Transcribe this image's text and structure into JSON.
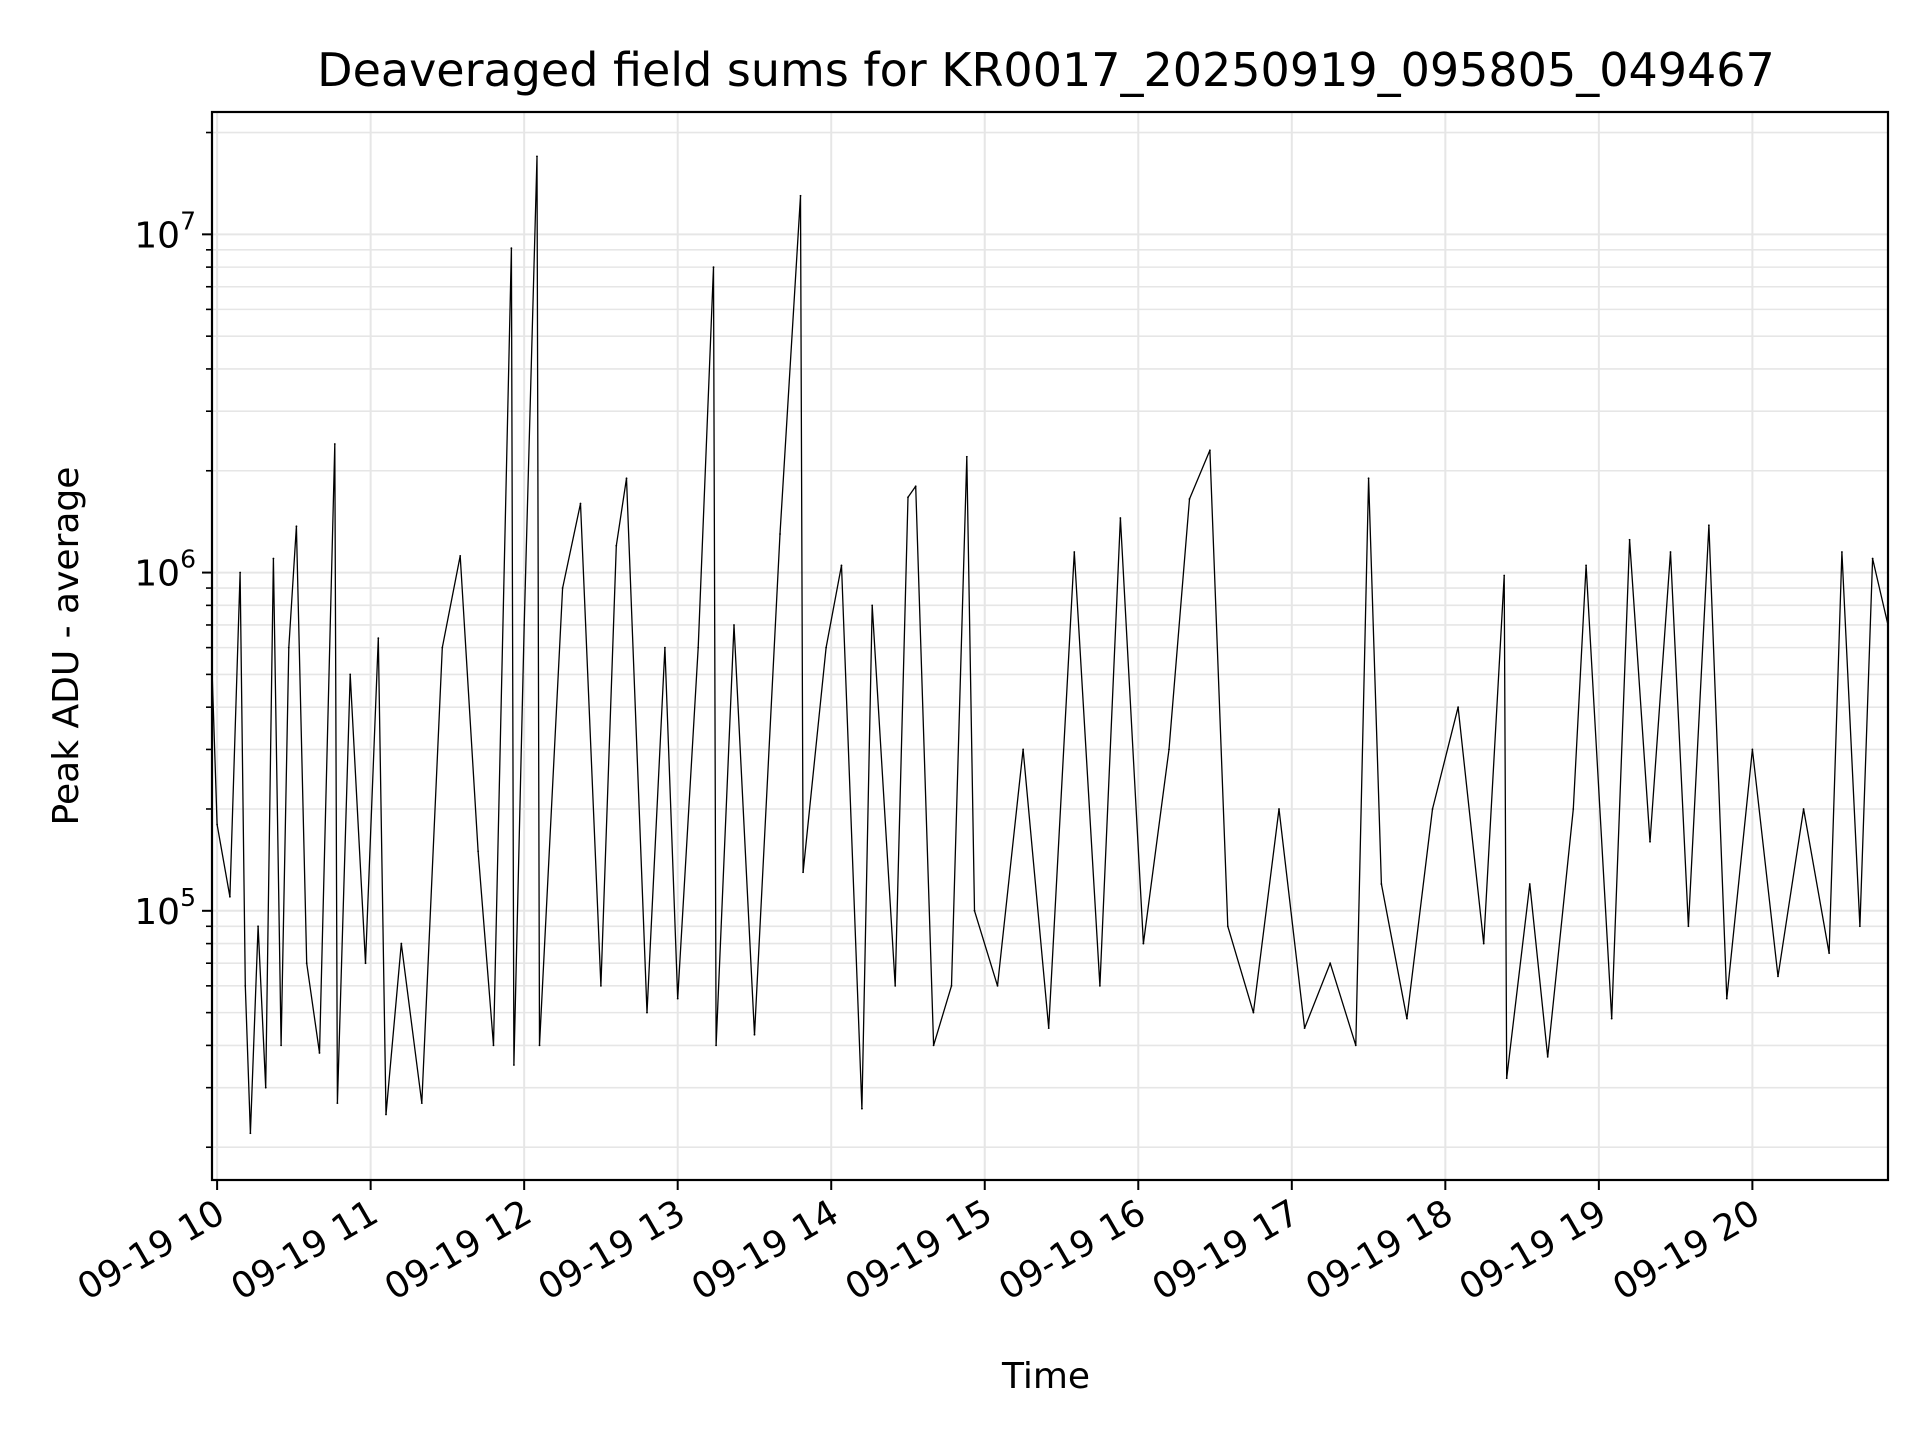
{
  "chart_data": {
    "type": "line",
    "title": "Deaveraged field sums for KR0017_20250919_095805_049467",
    "xlabel": "Time",
    "ylabel": "Peak ADU - average",
    "yscale": "log",
    "grid": true,
    "x_range": [
      "2025-09-19 09:58",
      "2025-09-19 20:53"
    ],
    "ylim": [
      16000,
      23000000
    ],
    "x_ticks": [
      {
        "label": "09-19 10",
        "t": "2025-09-19 10:00"
      },
      {
        "label": "09-19 11",
        "t": "2025-09-19 11:00"
      },
      {
        "label": "09-19 12",
        "t": "2025-09-19 12:00"
      },
      {
        "label": "09-19 13",
        "t": "2025-09-19 13:00"
      },
      {
        "label": "09-19 14",
        "t": "2025-09-19 14:00"
      },
      {
        "label": "09-19 15",
        "t": "2025-09-19 15:00"
      },
      {
        "label": "09-19 16",
        "t": "2025-09-19 16:00"
      },
      {
        "label": "09-19 17",
        "t": "2025-09-19 17:00"
      },
      {
        "label": "09-19 18",
        "t": "2025-09-19 18:00"
      },
      {
        "label": "09-19 19",
        "t": "2025-09-19 19:00"
      },
      {
        "label": "09-19 20",
        "t": "2025-09-19 20:00"
      }
    ],
    "y_ticks": [
      {
        "value": 100000,
        "label": "10",
        "exp": "5"
      },
      {
        "value": 1000000,
        "label": "10",
        "exp": "6"
      },
      {
        "value": 10000000,
        "label": "10",
        "exp": "7"
      }
    ],
    "series": [
      {
        "color": "#000000",
        "points": [
          [
            "2025-09-19 09:58",
            520000
          ],
          [
            "2025-09-19 10:00",
            180000
          ],
          [
            "2025-09-19 10:05",
            110000
          ],
          [
            "2025-09-19 10:09",
            1000000
          ],
          [
            "2025-09-19 10:11",
            60000
          ],
          [
            "2025-09-19 10:13",
            22000
          ],
          [
            "2025-09-19 10:16",
            90000
          ],
          [
            "2025-09-19 10:19",
            30000
          ],
          [
            "2025-09-19 10:22",
            1100000
          ],
          [
            "2025-09-19 10:25",
            40000
          ],
          [
            "2025-09-19 10:28",
            600000
          ],
          [
            "2025-09-19 10:31",
            1370000
          ],
          [
            "2025-09-19 10:35",
            70000
          ],
          [
            "2025-09-19 10:40",
            38000
          ],
          [
            "2025-09-19 10:46",
            2400000
          ],
          [
            "2025-09-19 10:47",
            27000
          ],
          [
            "2025-09-19 10:52",
            500000
          ],
          [
            "2025-09-19 10:58",
            70000
          ],
          [
            "2025-09-19 11:03",
            640000
          ],
          [
            "2025-09-19 11:06",
            25000
          ],
          [
            "2025-09-19 11:12",
            80000
          ],
          [
            "2025-09-19 11:20",
            27000
          ],
          [
            "2025-09-19 11:28",
            600000
          ],
          [
            "2025-09-19 11:35",
            1120000
          ],
          [
            "2025-09-19 11:42",
            150000
          ],
          [
            "2025-09-19 11:48",
            40000
          ],
          [
            "2025-09-19 11:55",
            9100000
          ],
          [
            "2025-09-19 11:56",
            35000
          ],
          [
            "2025-09-19 12:00",
            700000
          ],
          [
            "2025-09-19 12:05",
            17000000
          ],
          [
            "2025-09-19 12:06",
            40000
          ],
          [
            "2025-09-19 12:15",
            900000
          ],
          [
            "2025-09-19 12:22",
            1600000
          ],
          [
            "2025-09-19 12:30",
            60000
          ],
          [
            "2025-09-19 12:36",
            1200000
          ],
          [
            "2025-09-19 12:40",
            1900000
          ],
          [
            "2025-09-19 12:48",
            50000
          ],
          [
            "2025-09-19 12:55",
            600000
          ],
          [
            "2025-09-19 13:00",
            55000
          ],
          [
            "2025-09-19 13:08",
            600000
          ],
          [
            "2025-09-19 13:14",
            8000000
          ],
          [
            "2025-09-19 13:15",
            40000
          ],
          [
            "2025-09-19 13:22",
            700000
          ],
          [
            "2025-09-19 13:30",
            43000
          ],
          [
            "2025-09-19 13:40",
            1300000
          ],
          [
            "2025-09-19 13:48",
            13000000
          ],
          [
            "2025-09-19 13:49",
            130000
          ],
          [
            "2025-09-19 13:58",
            600000
          ],
          [
            "2025-09-19 14:04",
            1050000
          ],
          [
            "2025-09-19 14:12",
            26000
          ],
          [
            "2025-09-19 14:16",
            800000
          ],
          [
            "2025-09-19 14:25",
            60000
          ],
          [
            "2025-09-19 14:30",
            1670000
          ],
          [
            "2025-09-19 14:33",
            1800000
          ],
          [
            "2025-09-19 14:40",
            40000
          ],
          [
            "2025-09-19 14:47",
            60000
          ],
          [
            "2025-09-19 14:53",
            2200000
          ],
          [
            "2025-09-19 14:56",
            100000
          ],
          [
            "2025-09-19 15:05",
            60000
          ],
          [
            "2025-09-19 15:15",
            300000
          ],
          [
            "2025-09-19 15:25",
            45000
          ],
          [
            "2025-09-19 15:35",
            1150000
          ],
          [
            "2025-09-19 15:45",
            60000
          ],
          [
            "2025-09-19 15:53",
            1450000
          ],
          [
            "2025-09-19 16:02",
            80000
          ],
          [
            "2025-09-19 16:12",
            300000
          ],
          [
            "2025-09-19 16:20",
            1650000
          ],
          [
            "2025-09-19 16:28",
            2300000
          ],
          [
            "2025-09-19 16:35",
            90000
          ],
          [
            "2025-09-19 16:45",
            50000
          ],
          [
            "2025-09-19 16:55",
            200000
          ],
          [
            "2025-09-19 17:05",
            45000
          ],
          [
            "2025-09-19 17:15",
            70000
          ],
          [
            "2025-09-19 17:25",
            40000
          ],
          [
            "2025-09-19 17:30",
            1900000
          ],
          [
            "2025-09-19 17:35",
            120000
          ],
          [
            "2025-09-19 17:45",
            48000
          ],
          [
            "2025-09-19 17:55",
            200000
          ],
          [
            "2025-09-19 18:05",
            400000
          ],
          [
            "2025-09-19 18:15",
            80000
          ],
          [
            "2025-09-19 18:23",
            980000
          ],
          [
            "2025-09-19 18:24",
            32000
          ],
          [
            "2025-09-19 18:33",
            120000
          ],
          [
            "2025-09-19 18:40",
            37000
          ],
          [
            "2025-09-19 18:50",
            200000
          ],
          [
            "2025-09-19 18:55",
            1050000
          ],
          [
            "2025-09-19 19:05",
            48000
          ],
          [
            "2025-09-19 19:12",
            1250000
          ],
          [
            "2025-09-19 19:20",
            160000
          ],
          [
            "2025-09-19 19:28",
            1150000
          ],
          [
            "2025-09-19 19:35",
            90000
          ],
          [
            "2025-09-19 19:43",
            1380000
          ],
          [
            "2025-09-19 19:50",
            55000
          ],
          [
            "2025-09-19 20:00",
            300000
          ],
          [
            "2025-09-19 20:10",
            64000
          ],
          [
            "2025-09-19 20:20",
            200000
          ],
          [
            "2025-09-19 20:30",
            75000
          ],
          [
            "2025-09-19 20:35",
            1150000
          ],
          [
            "2025-09-19 20:42",
            90000
          ],
          [
            "2025-09-19 20:47",
            1100000
          ],
          [
            "2025-09-19 20:53",
            700000
          ]
        ]
      }
    ]
  }
}
